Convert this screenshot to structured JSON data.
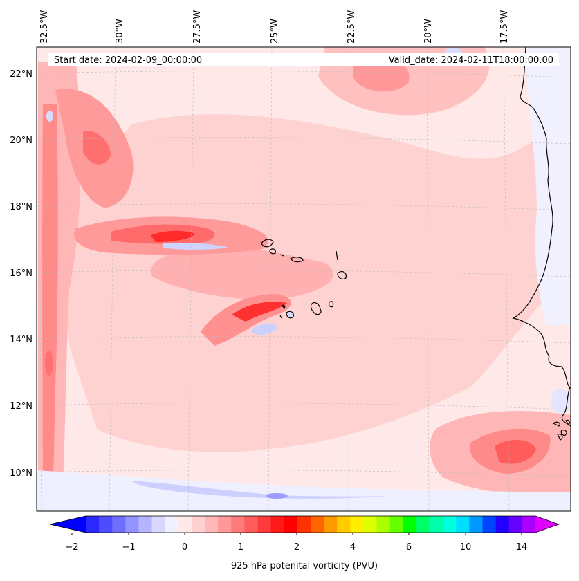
{
  "header": {
    "start_date": "Start date: 2024-02-09_00:00:00",
    "valid_date": "Valid_date: 2024-02-11T18:00:00.00"
  },
  "axes": {
    "longitude_labels": [
      "32.5°W",
      "30°W",
      "27.5°W",
      "25°W",
      "22.5°W",
      "20°W",
      "17.5°W"
    ],
    "latitude_labels": [
      "22°N",
      "20°N",
      "18°N",
      "16°N",
      "14°N",
      "12°N",
      "10°N"
    ]
  },
  "colorbar": {
    "label": "925 hPa potenital vorticity (PVU)",
    "tick_labels": [
      "−2",
      "−1",
      "0",
      "1",
      "2",
      "4",
      "6",
      "10",
      "14"
    ],
    "colors": [
      "#0000ff",
      "#2a2aff",
      "#4d4dff",
      "#6f6fff",
      "#9393ff",
      "#b5b5ff",
      "#d8d8ff",
      "#f0f0ff",
      "#ffe8e8",
      "#ffd0d0",
      "#ffb6b6",
      "#ff9898",
      "#ff7a7a",
      "#ff5c5c",
      "#ff3a3a",
      "#ff1a1a",
      "#ff0000",
      "#ff3300",
      "#ff6600",
      "#ff9900",
      "#ffcc00",
      "#ffee00",
      "#ddff00",
      "#aaff00",
      "#66ff00",
      "#00ff00",
      "#00ff66",
      "#00ffaa",
      "#00ffdd",
      "#00ddff",
      "#0099ff",
      "#0044ff",
      "#2200ff",
      "#6600ff",
      "#aa00ff",
      "#dd00ff"
    ]
  },
  "palette": {
    "land_line": "#000000",
    "weak_pos": "#ffe8e8",
    "pos": "#ffc8c8",
    "mid_pos": "#ffacac",
    "strong_pos": "#ff7070",
    "very_strong": "#ff2020",
    "neg": "#cdd0ff",
    "weak_neg": "#eef0ff"
  }
}
